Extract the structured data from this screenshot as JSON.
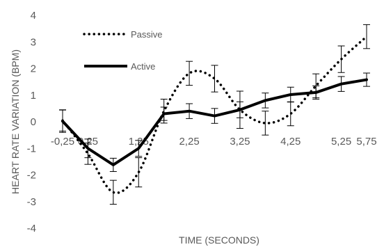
{
  "chart_data": {
    "type": "line",
    "title": "",
    "xlabel": "TIME (SECONDS)",
    "ylabel": "HEART RATE VARIATION (BPM)",
    "ylim": [
      -4,
      4
    ],
    "y_ticks": [
      "4",
      "3",
      "2",
      "1",
      "0",
      "-1",
      "-2",
      "-3",
      "-4"
    ],
    "x_tick_labels": [
      "-0,25",
      "0,25",
      "1,25",
      "2,25",
      "3,25",
      "4,25",
      "5,25",
      "5,75"
    ],
    "x": [
      -0.25,
      0.25,
      0.75,
      1.25,
      1.75,
      2.25,
      2.75,
      3.25,
      3.75,
      4.25,
      4.75,
      5.25,
      5.75
    ],
    "grid": false,
    "legend_position": "top-left",
    "series": [
      {
        "name": "Passive",
        "style": "dotted",
        "color": "#000000",
        "values": [
          0.05,
          -1.2,
          -2.65,
          -1.9,
          0.4,
          1.82,
          1.62,
          0.45,
          -0.05,
          0.3,
          1.35,
          2.35,
          3.2
        ],
        "error": [
          0.4,
          0.4,
          0.45,
          0.55,
          0.45,
          0.45,
          0.5,
          0.7,
          0.45,
          0.45,
          0.45,
          0.5,
          0.45
        ]
      },
      {
        "name": "Active",
        "style": "solid",
        "color": "#000000",
        "values": [
          0.02,
          -1.0,
          -1.62,
          -1.0,
          0.3,
          0.4,
          0.22,
          0.45,
          0.8,
          1.02,
          1.1,
          1.42,
          1.58
        ],
        "error": [
          0.42,
          0.35,
          0.25,
          0.3,
          0.25,
          0.28,
          0.28,
          0.3,
          0.28,
          0.28,
          0.25,
          0.28,
          0.25
        ]
      }
    ]
  }
}
